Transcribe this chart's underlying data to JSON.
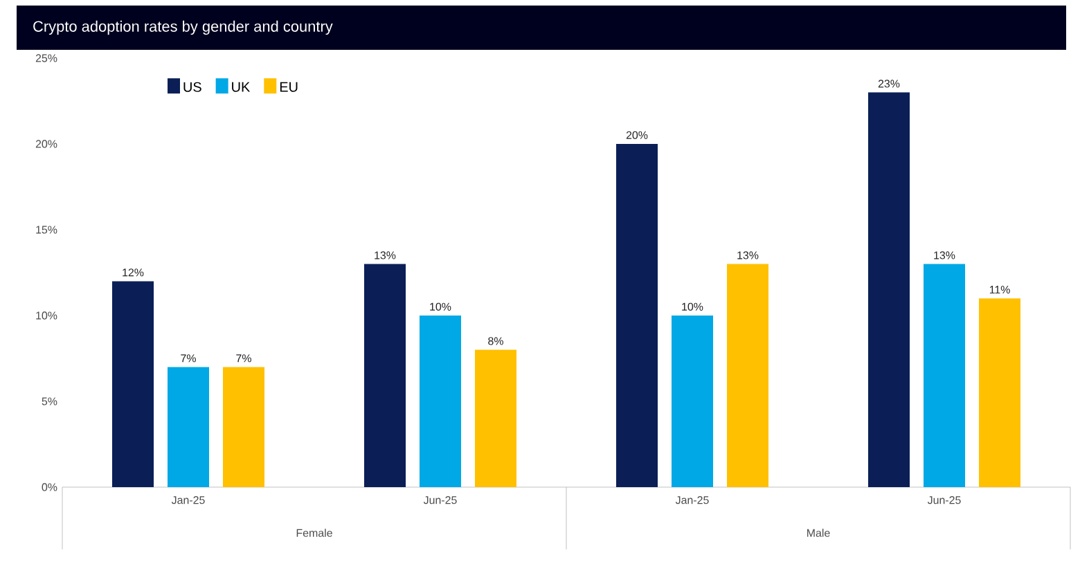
{
  "chart_data": {
    "type": "bar",
    "title": "Crypto adoption rates by gender and country",
    "categories": [
      "Jan-25",
      "Jun-25",
      "Jan-25",
      "Jun-25"
    ],
    "annotations": [
      "Female",
      "Male"
    ],
    "series": [
      {
        "name": "US",
        "color": "#0b1f56",
        "values": [
          12,
          13,
          20,
          23
        ],
        "value_labels": [
          "12%",
          "13%",
          "20%",
          "23%"
        ]
      },
      {
        "name": "UK",
        "color": "#00a8e6",
        "values": [
          7,
          10,
          10,
          13
        ],
        "value_labels": [
          "7%",
          "10%",
          "10%",
          "13%"
        ]
      },
      {
        "name": "EU",
        "color": "#ffc000",
        "values": [
          7,
          8,
          13,
          11
        ],
        "value_labels": [
          "7%",
          "8%",
          "13%",
          "11%"
        ]
      }
    ],
    "ylim": [
      0,
      25
    ],
    "yticks": [
      {
        "value": 0,
        "label": "0%"
      },
      {
        "value": 5,
        "label": "5%"
      },
      {
        "value": 10,
        "label": "10%"
      },
      {
        "value": 15,
        "label": "15%"
      },
      {
        "value": 20,
        "label": "20%"
      },
      {
        "value": 25,
        "label": "25%"
      }
    ],
    "grid": false,
    "legend": "top left"
  }
}
